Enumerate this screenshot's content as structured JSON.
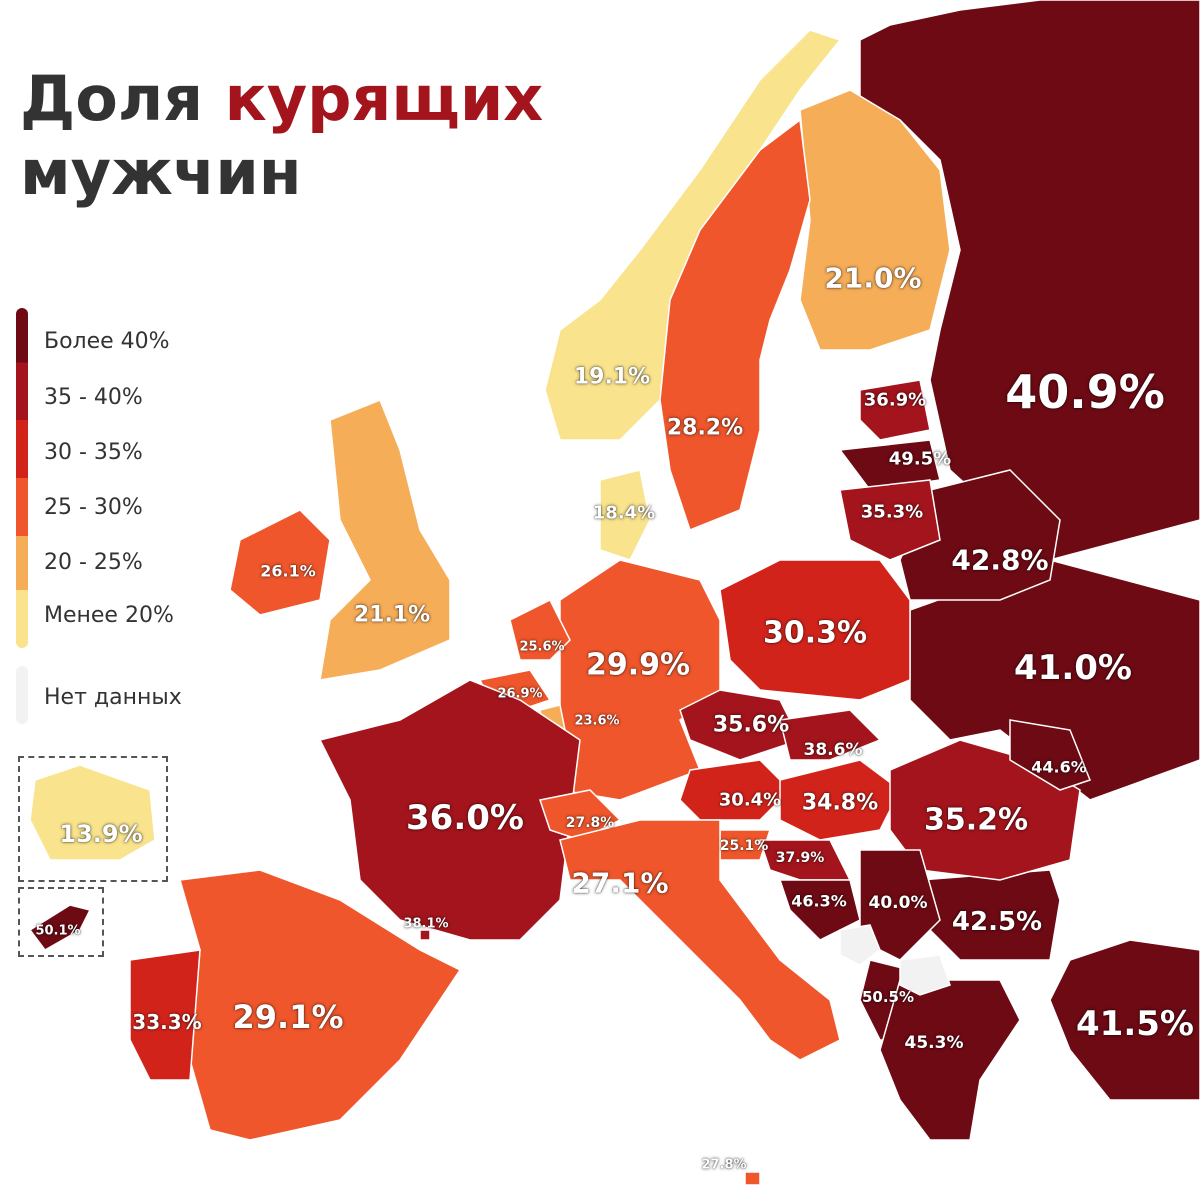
{
  "title": {
    "line1": "Доля",
    "accent": "курящих",
    "line2": "мужчин"
  },
  "legend": [
    {
      "label": "Более 40%",
      "color": "#6d0a14"
    },
    {
      "label": "35 - 40%",
      "color": "#a3141c"
    },
    {
      "label": "30 - 35%",
      "color": "#d2231b"
    },
    {
      "label": "25 - 30%",
      "color": "#f0562b"
    },
    {
      "label": "20 - 25%",
      "color": "#f6ad58"
    },
    {
      "label": "Менее 20%",
      "color": "#f9e38c"
    },
    {
      "label": "Нет данных",
      "color": "#f2f2f2"
    }
  ],
  "regions": [
    {
      "label": "40.9%",
      "cls": 0
    },
    {
      "label": "41.0%",
      "cls": 0
    },
    {
      "label": "41.5%",
      "cls": 0
    },
    {
      "label": "42.8%",
      "cls": 0
    },
    {
      "label": "42.5%",
      "cls": 0
    },
    {
      "label": "21.0%",
      "cls": 4
    },
    {
      "label": "19.1%",
      "cls": 5
    },
    {
      "label": "28.2%",
      "cls": 3
    },
    {
      "label": "18.4%",
      "cls": 5
    },
    {
      "label": "36.9%",
      "cls": 1
    },
    {
      "label": "49.5%",
      "cls": 0
    },
    {
      "label": "35.3%",
      "cls": 1
    },
    {
      "label": "30.3%",
      "cls": 2
    },
    {
      "label": "29.9%",
      "cls": 3
    },
    {
      "label": "21.1%",
      "cls": 4
    },
    {
      "label": "26.1%",
      "cls": 3
    },
    {
      "label": "25.6%",
      "cls": 3
    },
    {
      "label": "26.9%",
      "cls": 3
    },
    {
      "label": "23.6%",
      "cls": 4
    },
    {
      "label": "36.0%",
      "cls": 1
    },
    {
      "label": "38.1%",
      "cls": 1
    },
    {
      "label": "29.1%",
      "cls": 3
    },
    {
      "label": "33.3%",
      "cls": 2
    },
    {
      "label": "35.6%",
      "cls": 1
    },
    {
      "label": "38.6%",
      "cls": 1
    },
    {
      "label": "30.4%",
      "cls": 2
    },
    {
      "label": "34.8%",
      "cls": 2
    },
    {
      "label": "27.8%",
      "cls": 3
    },
    {
      "label": "25.1%",
      "cls": 3
    },
    {
      "label": "27.1%",
      "cls": 3
    },
    {
      "label": "35.2%",
      "cls": 1
    },
    {
      "label": "44.6%",
      "cls": 0
    },
    {
      "label": "37.9%",
      "cls": 1
    },
    {
      "label": "46.3%",
      "cls": 0
    },
    {
      "label": "40.0%",
      "cls": 0
    },
    {
      "label": "50.5%",
      "cls": 0
    },
    {
      "label": "45.3%",
      "cls": 0
    },
    {
      "label": "27.8%",
      "cls": 3
    },
    {
      "label": "13.9%",
      "cls": 5
    },
    {
      "label": "50.1%",
      "cls": 0
    }
  ],
  "no_data_regions": [
    "kosovo-region",
    "north-macedonia-region"
  ]
}
